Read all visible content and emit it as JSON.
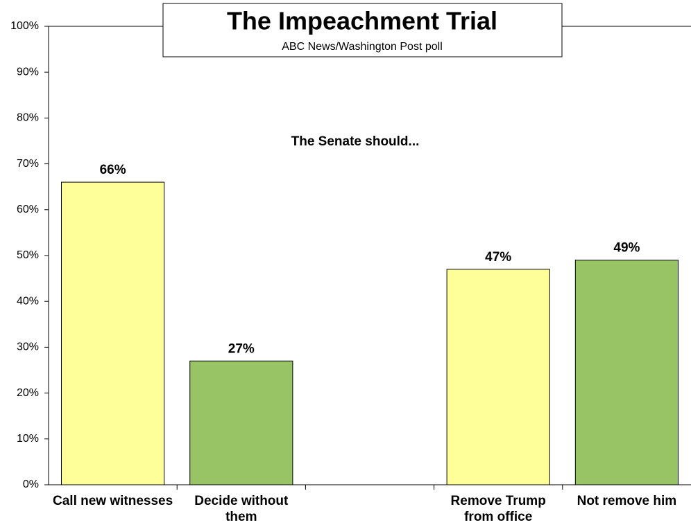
{
  "chart_data": {
    "type": "bar",
    "title": "The Impeachment Trial",
    "subtitle": "ABC News/Washington  Post poll",
    "annotation": "The Senate should...",
    "categories": [
      "Call new witnesses",
      "Decide without them",
      null,
      "Remove Trump from office",
      "Not remove him"
    ],
    "values": [
      66,
      27,
      null,
      47,
      49
    ],
    "value_labels": [
      "66%",
      "27%",
      null,
      "47%",
      "49%"
    ],
    "colors": [
      "#ffff99",
      "#99c466",
      null,
      "#ffff99",
      "#99c466"
    ],
    "ylim": [
      0,
      100
    ],
    "yticks": [
      {
        "value": 0,
        "label": "0%"
      },
      {
        "value": 10,
        "label": "10%"
      },
      {
        "value": 20,
        "label": "20%"
      },
      {
        "value": 30,
        "label": "30%"
      },
      {
        "value": 40,
        "label": "40%"
      },
      {
        "value": 50,
        "label": "50%"
      },
      {
        "value": 60,
        "label": "60%"
      },
      {
        "value": 70,
        "label": "70%"
      },
      {
        "value": 80,
        "label": "80%"
      },
      {
        "value": 90,
        "label": "90%"
      },
      {
        "value": 100,
        "label": "100%"
      }
    ],
    "grid": false
  }
}
